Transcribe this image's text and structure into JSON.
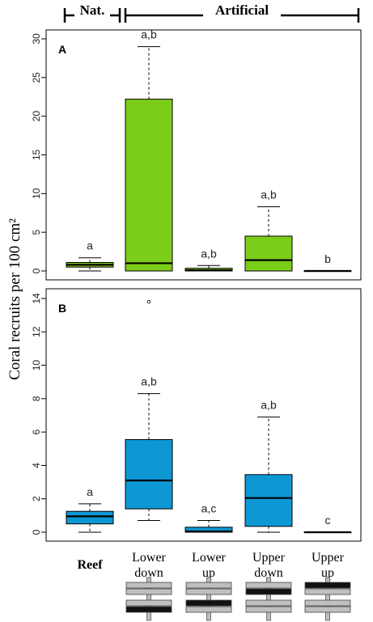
{
  "figure": {
    "ylabel": "Coral recruits per 100 cm²",
    "group_headers": [
      "Nat.",
      "Artificial"
    ],
    "categories": [
      {
        "line1": "Reef",
        "line2": "",
        "bold": true
      },
      {
        "line1": "Lower",
        "line2": "down",
        "bold": false
      },
      {
        "line1": "Lower",
        "line2": "up",
        "bold": false
      },
      {
        "line1": "Upper",
        "line2": "down",
        "bold": false
      },
      {
        "line1": "Upper",
        "line2": "up",
        "bold": false
      }
    ],
    "tile_icons": [
      null,
      {
        "dark_plate": "lower-bottom"
      },
      {
        "dark_plate": "lower-top"
      },
      {
        "dark_plate": "upper-bottom"
      },
      {
        "dark_plate": "upper-top"
      }
    ],
    "colors": {
      "panel_a_fill": "#7ccd1a",
      "panel_b_fill": "#0d98d4"
    }
  },
  "chart_data": [
    {
      "type": "boxplot",
      "panel": "A",
      "ylim": [
        0,
        30
      ],
      "yticks": [
        0,
        5,
        10,
        15,
        20,
        25,
        30
      ],
      "categories": [
        "Reef",
        "Lower down",
        "Lower up",
        "Upper down",
        "Upper up"
      ],
      "boxes": [
        {
          "whisker_low": 0.0,
          "q1": 0.5,
          "median": 0.8,
          "q3": 1.1,
          "whisker_high": 1.7
        },
        {
          "whisker_low": 0.0,
          "q1": 0.0,
          "median": 1.0,
          "q3": 22.2,
          "whisker_high": 29.0
        },
        {
          "whisker_low": 0.0,
          "q1": 0.0,
          "median": 0.1,
          "q3": 0.35,
          "whisker_high": 0.7
        },
        {
          "whisker_low": 0.0,
          "q1": 0.0,
          "median": 1.4,
          "q3": 4.5,
          "whisker_high": 8.3
        },
        {
          "whisker_low": 0.0,
          "q1": 0.0,
          "median": 0.0,
          "q3": 0.0,
          "whisker_high": 0.0
        }
      ],
      "outliers": [],
      "significance_labels": [
        "a",
        "a,b",
        "a,b",
        "a,b",
        "b"
      ]
    },
    {
      "type": "boxplot",
      "panel": "B",
      "ylim": [
        0,
        14
      ],
      "yticks": [
        0,
        2,
        4,
        6,
        8,
        10,
        12,
        14
      ],
      "categories": [
        "Reef",
        "Lower down",
        "Lower up",
        "Upper down",
        "Upper up"
      ],
      "boxes": [
        {
          "whisker_low": 0.0,
          "q1": 0.5,
          "median": 0.95,
          "q3": 1.25,
          "whisker_high": 1.7
        },
        {
          "whisker_low": 0.7,
          "q1": 1.4,
          "median": 3.1,
          "q3": 5.55,
          "whisker_high": 8.3
        },
        {
          "whisker_low": 0.0,
          "q1": 0.0,
          "median": 0.05,
          "q3": 0.3,
          "whisker_high": 0.7
        },
        {
          "whisker_low": 0.0,
          "q1": 0.35,
          "median": 2.05,
          "q3": 3.45,
          "whisker_high": 6.9
        },
        {
          "whisker_low": 0.0,
          "q1": 0.0,
          "median": 0.0,
          "q3": 0.0,
          "whisker_high": 0.0
        }
      ],
      "outliers": [
        {
          "category": "Lower down",
          "value": 13.8
        }
      ],
      "significance_labels": [
        "a",
        "a,b",
        "a,c",
        "a,b",
        "c"
      ]
    }
  ]
}
